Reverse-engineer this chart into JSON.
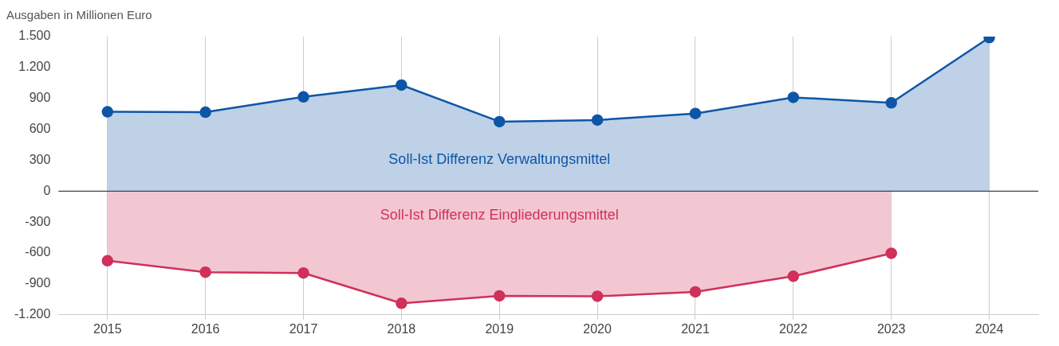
{
  "chart_data": {
    "type": "area",
    "ylabel": "Ausgaben in Millionen Euro",
    "categories": [
      "2015",
      "2016",
      "2017",
      "2018",
      "2019",
      "2020",
      "2021",
      "2022",
      "2023",
      "2024"
    ],
    "series": [
      {
        "name": "Soll-Ist Differenz Verwaltungsmittel",
        "color": "#0d56a6",
        "values": [
          770,
          766,
          915,
          1030,
          675,
          690,
          754,
          910,
          857,
          1490
        ]
      },
      {
        "name": "Soll-Ist Differenz Eingliederungsmittel",
        "color": "#d0305a",
        "values": [
          -675,
          -786,
          -794,
          -1088,
          -1016,
          -1020,
          -977,
          -826,
          -603,
          null
        ]
      }
    ],
    "ylim": [
      -1200,
      1500
    ],
    "yticks": [
      {
        "value": -1200,
        "label": "-1.200"
      },
      -900,
      -600,
      -300,
      0,
      300,
      600,
      900,
      {
        "value": 1200,
        "label": "1.200"
      },
      {
        "value": 1500,
        "label": "1.500"
      }
    ],
    "ref_lines": [
      {
        "axis": "y",
        "value": 0,
        "color": "#444444"
      }
    ],
    "grid": "x",
    "legend": false,
    "marker": "circle",
    "line_style": "solid"
  }
}
